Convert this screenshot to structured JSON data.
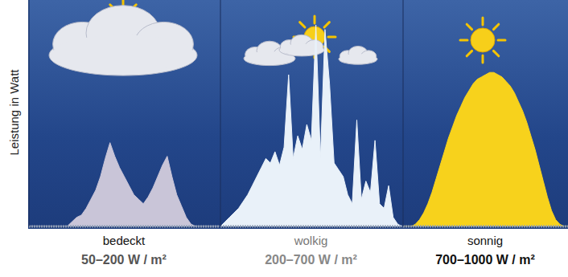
{
  "chart_data": [
    {
      "type": "area",
      "title": "bedeckt",
      "subtitle": "50–200 W / m²",
      "ylabel": "Leistung in Watt",
      "color": "#c9c5d8",
      "tick_labels": false,
      "x": [
        0,
        1,
        2,
        3,
        4,
        5,
        6,
        7,
        8,
        9,
        10,
        11,
        12,
        13,
        14,
        15,
        16,
        17,
        18,
        19,
        20,
        21,
        22,
        23,
        24,
        25,
        26,
        27,
        28,
        29,
        30,
        31,
        32,
        33,
        34,
        35,
        36,
        37,
        38,
        39,
        40
      ],
      "values": [
        0,
        0,
        0,
        0,
        0,
        0,
        0,
        0,
        0,
        2,
        4,
        5,
        8,
        12,
        16,
        22,
        30,
        37,
        31,
        26,
        22,
        18,
        14,
        12,
        10,
        13,
        17,
        22,
        27,
        31,
        22,
        14,
        9,
        4,
        1,
        0,
        0,
        0,
        0,
        0,
        0
      ],
      "xlim": [
        0,
        40
      ],
      "ylim": [
        0,
        100
      ]
    },
    {
      "type": "area",
      "title": "wolkig",
      "subtitle": "200–700 W / m²",
      "color": "#e9f1f9",
      "tick_labels": false,
      "x": [
        0,
        1,
        2,
        3,
        4,
        5,
        6,
        7,
        8,
        9,
        10,
        11,
        12,
        13,
        14,
        15,
        16,
        17,
        18,
        19,
        20,
        21,
        22,
        23,
        24,
        25,
        26,
        27,
        28,
        29,
        30,
        31,
        32,
        33,
        34,
        35,
        36,
        37,
        38,
        39,
        40
      ],
      "values": [
        0,
        2,
        4,
        6,
        8,
        11,
        14,
        18,
        22,
        26,
        30,
        28,
        33,
        27,
        35,
        67,
        30,
        40,
        34,
        45,
        38,
        89,
        30,
        87,
        63,
        28,
        25,
        22,
        14,
        10,
        47,
        12,
        20,
        15,
        38,
        10,
        8,
        18,
        4,
        1,
        0
      ],
      "xlim": [
        0,
        40
      ],
      "ylim": [
        0,
        100
      ]
    },
    {
      "type": "area",
      "title": "sonnig",
      "subtitle": "700–1000 W / m²",
      "color": "#f7d21c",
      "tick_labels": false,
      "x": [
        0,
        1,
        2,
        3,
        4,
        5,
        6,
        7,
        8,
        9,
        10,
        11,
        12,
        13,
        14,
        15,
        16,
        17,
        18,
        19,
        20,
        21,
        22,
        23,
        24,
        25,
        26,
        27,
        28,
        29,
        30,
        31,
        32,
        33,
        34,
        35,
        36,
        37,
        38,
        39,
        40
      ],
      "values": [
        0,
        0,
        0,
        1,
        3,
        6,
        10,
        15,
        21,
        27,
        33,
        39,
        44,
        49,
        53,
        57,
        60,
        63,
        65,
        66,
        67,
        68,
        68,
        67,
        66,
        64,
        62,
        59,
        55,
        51,
        46,
        40,
        34,
        27,
        20,
        13,
        7,
        3,
        1,
        0,
        0
      ],
      "xlim": [
        0,
        40
      ],
      "ylim": [
        0,
        100
      ]
    }
  ]
}
